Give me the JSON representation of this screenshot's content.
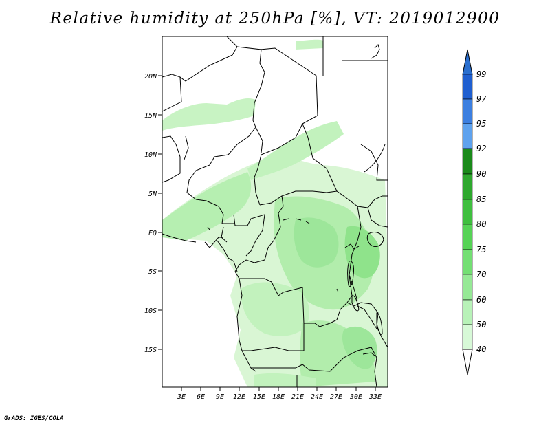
{
  "title": "Relative humidity at 250hPa [%], VT: 2019012900",
  "credit": "GrADS: IGES/COLA",
  "map": {
    "lat_labels": [
      "20N",
      "15N",
      "10N",
      "5N",
      "EQ",
      "5S",
      "10S",
      "15S"
    ],
    "lon_labels": [
      "3E",
      "6E",
      "9E",
      "12E",
      "15E",
      "18E",
      "21E",
      "24E",
      "27E",
      "30E",
      "33E"
    ]
  },
  "colorbar": {
    "levels": [
      "99",
      "97",
      "95",
      "92",
      "90",
      "85",
      "80",
      "75",
      "70",
      "60",
      "50",
      "40"
    ],
    "colors": [
      "#1f5fd0",
      "#3c7fe0",
      "#5ea2ee",
      "#1a8a1a",
      "#2ea82e",
      "#3fbf3f",
      "#56d356",
      "#73df73",
      "#96e996",
      "#b8f2b8",
      "#d7f9d7",
      "#f0fff0"
    ],
    "top_color": "#2a6fcf"
  }
}
